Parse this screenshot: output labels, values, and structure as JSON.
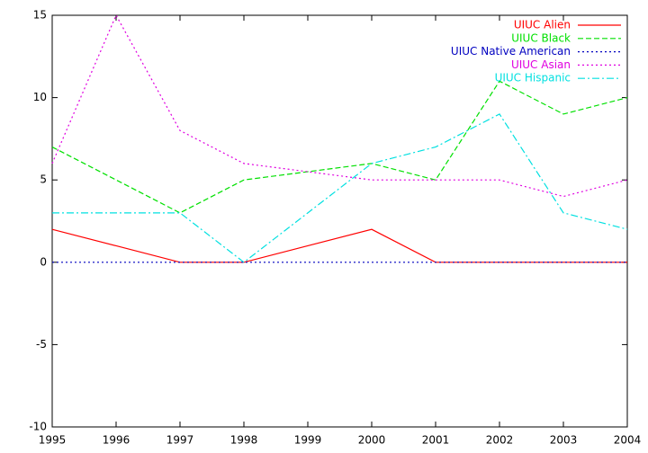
{
  "chart_data": {
    "type": "line",
    "x": [
      1995,
      1996,
      1997,
      1998,
      1999,
      2000,
      2001,
      2002,
      2003,
      2004
    ],
    "series": [
      {
        "name": "UIUC Alien",
        "color": "#ff0000",
        "dash": "solid",
        "values": [
          2,
          1,
          0,
          0,
          1,
          2,
          0,
          0,
          0,
          0
        ]
      },
      {
        "name": "UIUC Black",
        "color": "#00e000",
        "dash": "dashed",
        "values": [
          7,
          5,
          3,
          5,
          5.5,
          6,
          5,
          11,
          9,
          10
        ]
      },
      {
        "name": "UIUC Native American",
        "color": "#0000c0",
        "dash": "dotted",
        "values": [
          0,
          0,
          0,
          0,
          0,
          0,
          0,
          0,
          0,
          0
        ]
      },
      {
        "name": "UIUC Asian",
        "color": "#e000e0",
        "dash": "dotted",
        "values": [
          6,
          15,
          8,
          6,
          5.5,
          5,
          5,
          5,
          4,
          5
        ]
      },
      {
        "name": "UIUC Hispanic",
        "color": "#00e0e0",
        "dash": "dashdot",
        "values": [
          3,
          3,
          3,
          0,
          3,
          6,
          7,
          9,
          3,
          2
        ]
      }
    ],
    "xlim": [
      1995,
      2004
    ],
    "xticks": [
      1995,
      1996,
      1997,
      1998,
      1999,
      2000,
      2001,
      2002,
      2003,
      2004
    ],
    "ylim": [
      -10,
      15
    ],
    "yticks": [
      -10,
      -5,
      0,
      5,
      10,
      15
    ],
    "legend": "top-right"
  }
}
